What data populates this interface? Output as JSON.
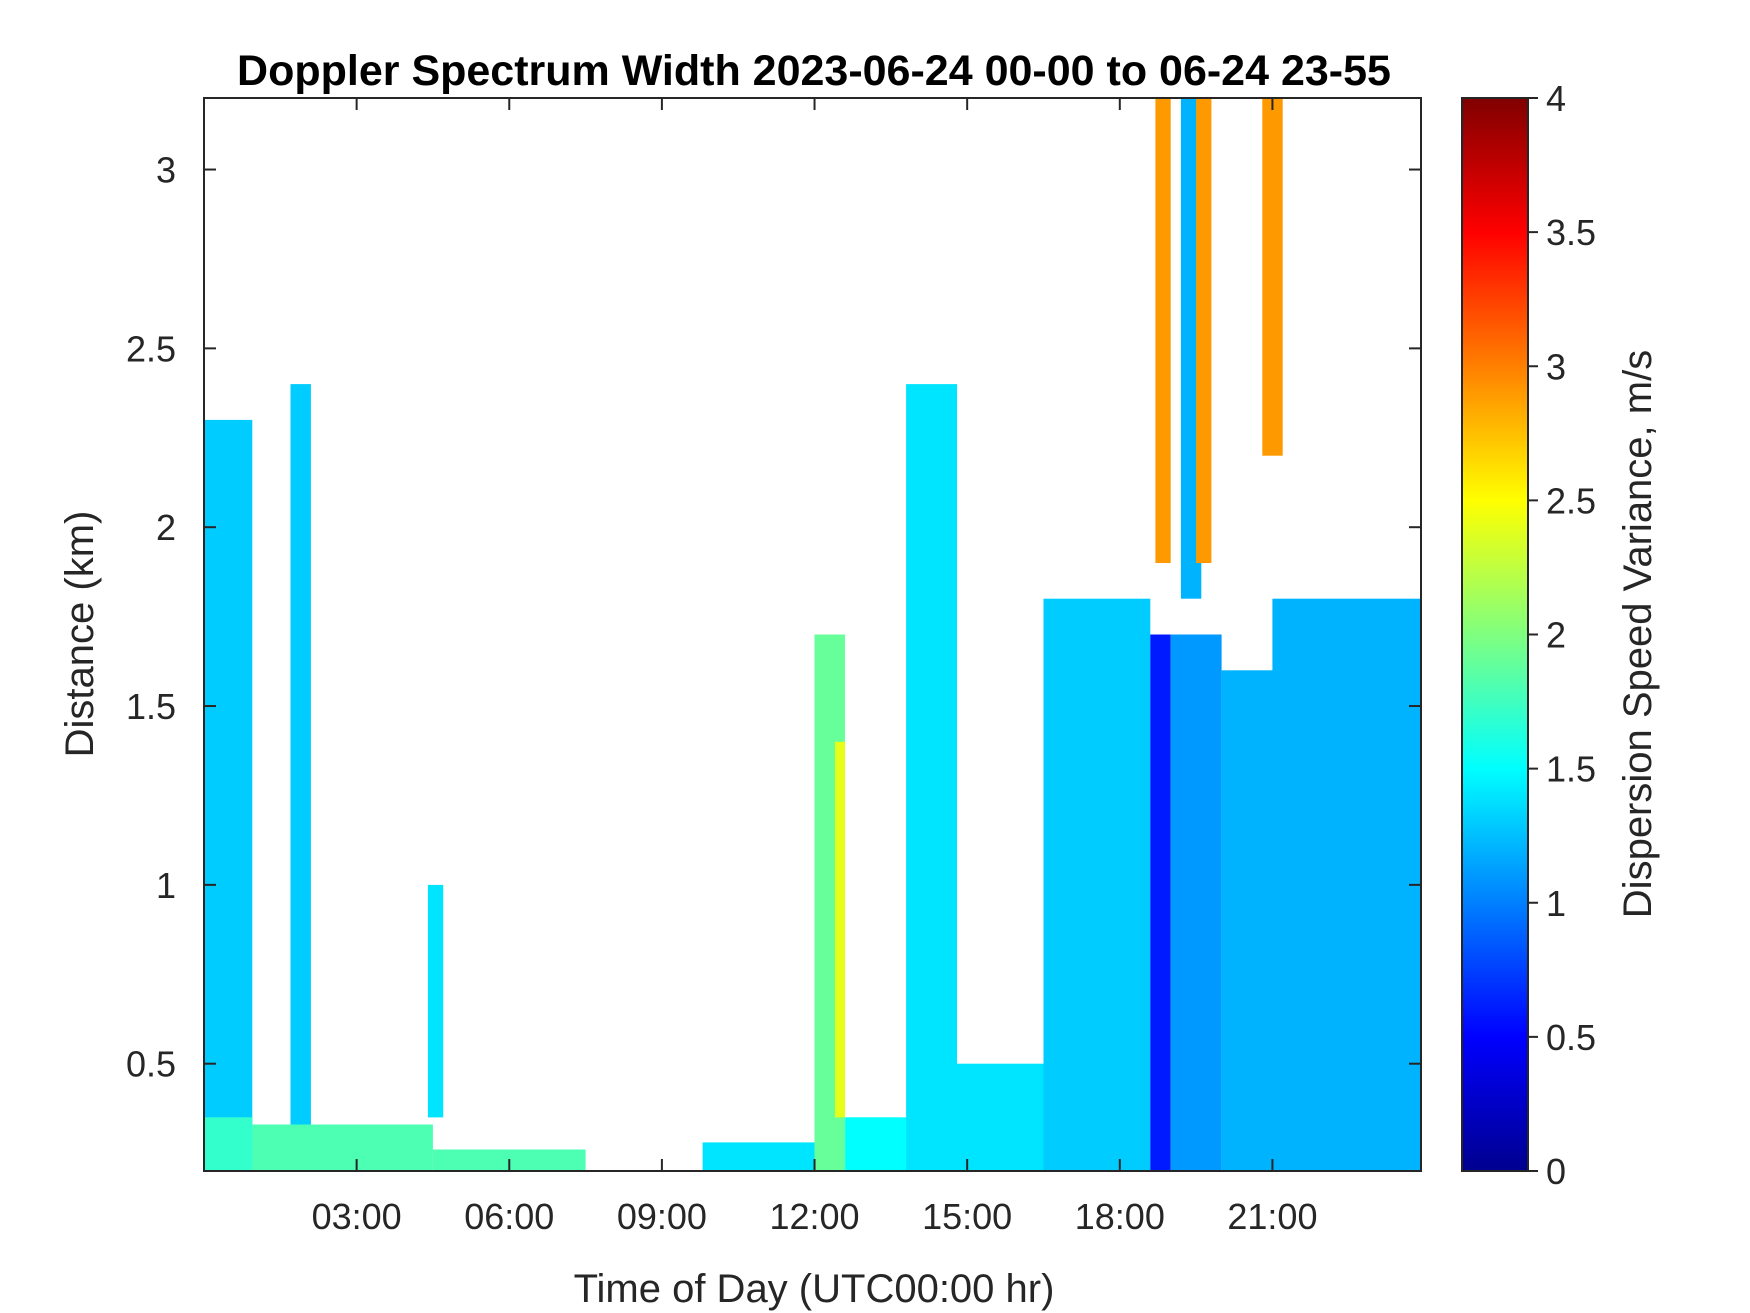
{
  "chart_data": {
    "type": "heatmap",
    "title": "Doppler Spectrum Width 2023-06-24 00-00 to 06-24 23-55",
    "xlabel": "Time of Day (UTC00:00 hr)",
    "ylabel": "Distance (km)",
    "colorbar_label": "Dispersion Speed Variance, m/s",
    "colormap": "jet",
    "xlim": [
      0,
      23.92
    ],
    "ylim": [
      0.2,
      3.2
    ],
    "clim": [
      0,
      4
    ],
    "x_ticks": [
      {
        "value": 3,
        "label": "03:00"
      },
      {
        "value": 6,
        "label": "06:00"
      },
      {
        "value": 9,
        "label": "09:00"
      },
      {
        "value": 12,
        "label": "12:00"
      },
      {
        "value": 15,
        "label": "15:00"
      },
      {
        "value": 18,
        "label": "18:00"
      },
      {
        "value": 21,
        "label": "21:00"
      }
    ],
    "y_ticks": [
      {
        "value": 0.5,
        "label": "0.5"
      },
      {
        "value": 1,
        "label": "1"
      },
      {
        "value": 1.5,
        "label": "1.5"
      },
      {
        "value": 2,
        "label": "2"
      },
      {
        "value": 2.5,
        "label": "2.5"
      },
      {
        "value": 3,
        "label": "3"
      }
    ],
    "colorbar_ticks": [
      {
        "value": 0,
        "label": "0"
      },
      {
        "value": 0.5,
        "label": "0.5"
      },
      {
        "value": 1,
        "label": "1"
      },
      {
        "value": 1.5,
        "label": "1.5"
      },
      {
        "value": 2,
        "label": "2"
      },
      {
        "value": 2.5,
        "label": "2.5"
      },
      {
        "value": 3,
        "label": "3"
      },
      {
        "value": 3.5,
        "label": "3.5"
      },
      {
        "value": 4,
        "label": "4"
      }
    ],
    "regions": [
      {
        "x": [
          0.0,
          0.95
        ],
        "y": [
          0.2,
          2.3
        ],
        "value": 1.3
      },
      {
        "x": [
          0.0,
          0.95
        ],
        "y": [
          0.2,
          0.35
        ],
        "value": 1.7
      },
      {
        "x": [
          1.7,
          2.1
        ],
        "y": [
          0.2,
          2.4
        ],
        "value": 1.3
      },
      {
        "x": [
          0.95,
          4.5
        ],
        "y": [
          0.2,
          0.33
        ],
        "value": 1.8
      },
      {
        "x": [
          4.4,
          4.7
        ],
        "y": [
          0.35,
          1.0
        ],
        "value": 1.4
      },
      {
        "x": [
          4.5,
          7.5
        ],
        "y": [
          0.2,
          0.26
        ],
        "value": 1.8
      },
      {
        "x": [
          9.8,
          12.0
        ],
        "y": [
          0.2,
          0.28
        ],
        "value": 1.4
      },
      {
        "x": [
          12.0,
          12.6
        ],
        "y": [
          0.2,
          1.7
        ],
        "value": 1.9
      },
      {
        "x": [
          12.4,
          12.6
        ],
        "y": [
          0.35,
          1.4
        ],
        "value": 2.4
      },
      {
        "x": [
          12.6,
          14.2
        ],
        "y": [
          0.2,
          0.35
        ],
        "value": 1.5
      },
      {
        "x": [
          13.8,
          14.8
        ],
        "y": [
          0.2,
          2.4
        ],
        "value": 1.4
      },
      {
        "x": [
          14.2,
          16.5
        ],
        "y": [
          0.2,
          0.5
        ],
        "value": 1.4
      },
      {
        "x": [
          16.5,
          18.6
        ],
        "y": [
          0.2,
          1.8
        ],
        "value": 1.3
      },
      {
        "x": [
          18.6,
          19.0
        ],
        "y": [
          0.2,
          1.7
        ],
        "value": 0.6
      },
      {
        "x": [
          18.7,
          19.0
        ],
        "y": [
          1.9,
          3.2
        ],
        "value": 2.9
      },
      {
        "x": [
          19.0,
          20.0
        ],
        "y": [
          0.2,
          1.7
        ],
        "value": 1.1
      },
      {
        "x": [
          19.2,
          19.6
        ],
        "y": [
          1.8,
          3.2
        ],
        "value": 1.2
      },
      {
        "x": [
          19.5,
          19.8
        ],
        "y": [
          1.9,
          3.2
        ],
        "value": 2.9
      },
      {
        "x": [
          20.0,
          21.0
        ],
        "y": [
          0.2,
          1.6
        ],
        "value": 1.2
      },
      {
        "x": [
          21.0,
          23.92
        ],
        "y": [
          0.2,
          1.8
        ],
        "value": 1.2
      },
      {
        "x": [
          20.8,
          21.2
        ],
        "y": [
          2.2,
          3.2
        ],
        "value": 2.9
      }
    ]
  }
}
